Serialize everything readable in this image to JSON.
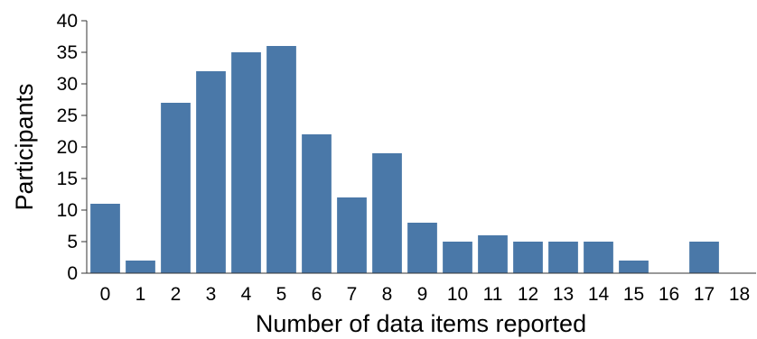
{
  "chart_data": {
    "type": "bar",
    "title": "",
    "xlabel": "Number of data items reported",
    "ylabel": "Participants",
    "categories": [
      "0",
      "1",
      "2",
      "3",
      "4",
      "5",
      "6",
      "7",
      "8",
      "9",
      "10",
      "11",
      "12",
      "13",
      "14",
      "15",
      "16",
      "17",
      "18"
    ],
    "values": [
      11,
      2,
      27,
      32,
      35,
      36,
      22,
      12,
      19,
      8,
      5,
      6,
      5,
      5,
      5,
      2,
      0,
      5,
      0
    ],
    "ylim": [
      0,
      40
    ],
    "yticks": [
      "0",
      "5",
      "10",
      "15",
      "20",
      "25",
      "30",
      "35",
      "40"
    ],
    "bar_color": "#4a78a8",
    "grid": false,
    "legend": "none"
  }
}
